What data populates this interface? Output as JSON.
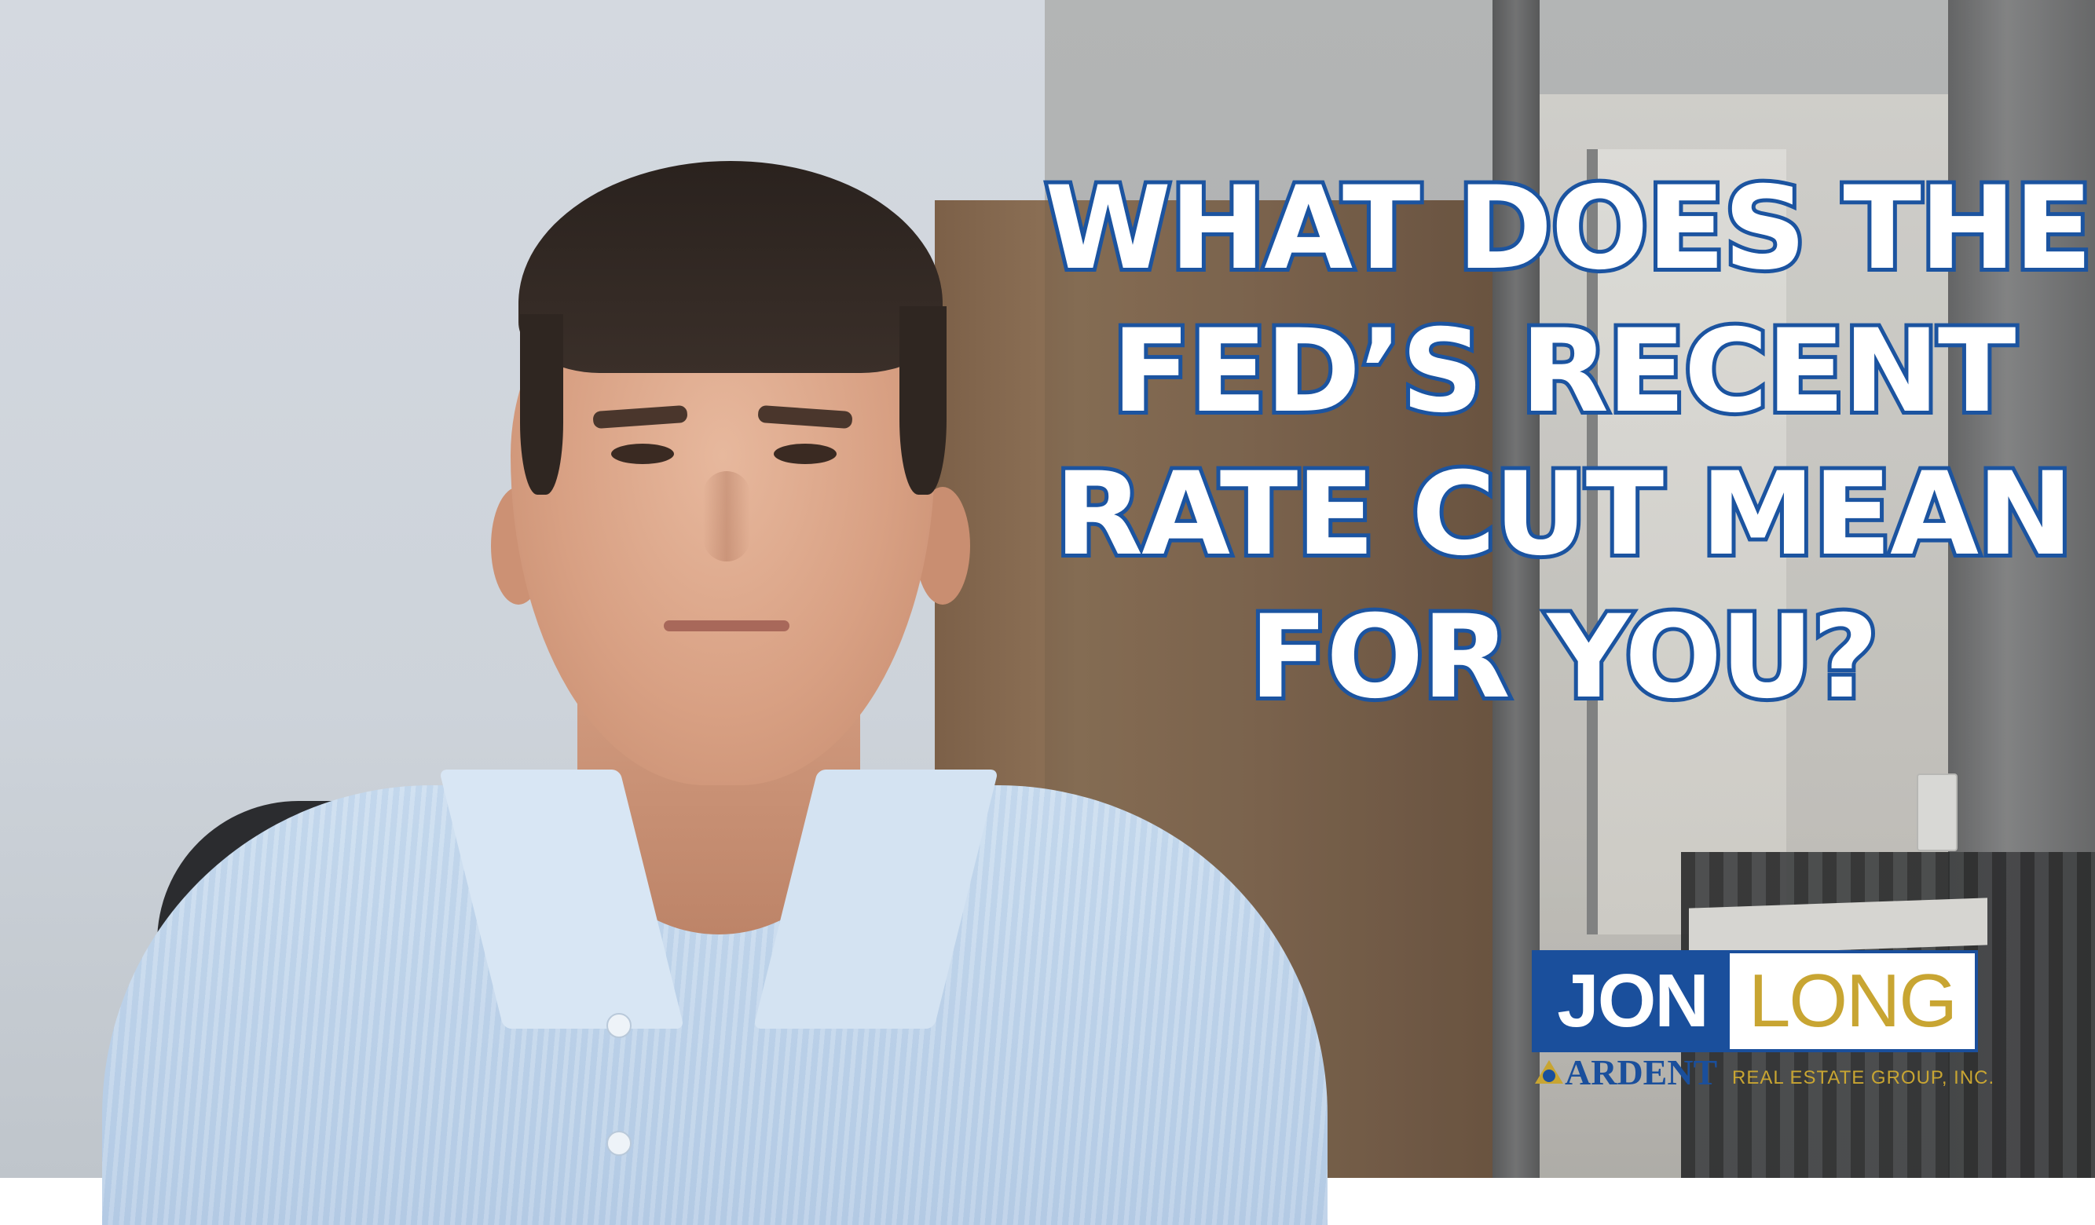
{
  "headline": {
    "lines": [
      "WHAT DOES THE",
      "FED’S RECENT",
      "RATE CUT MEAN",
      "FOR YOU?"
    ]
  },
  "logo": {
    "first_name": "JON",
    "last_name": "LONG",
    "brand": "ARDENT",
    "tagline": "REAL ESTATE GROUP, INC.",
    "colors": {
      "blue": "#1a4f9c",
      "gold": "#c8a532"
    }
  },
  "colors": {
    "headline_fill": "#ffffff",
    "headline_stroke": "#1c54a0"
  }
}
